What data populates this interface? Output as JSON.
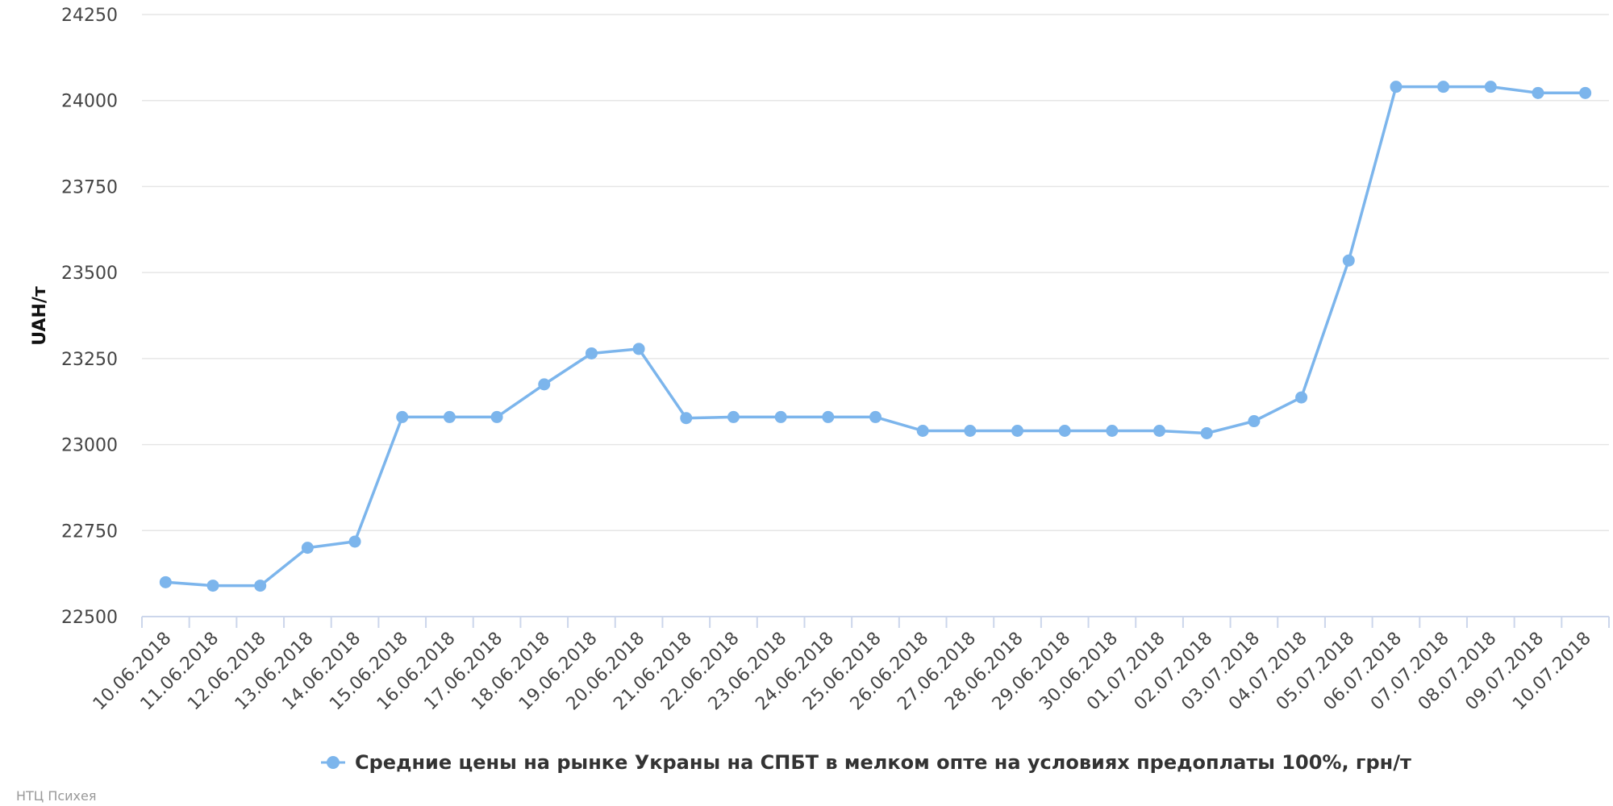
{
  "chart_data": {
    "type": "line",
    "ylabel": "UAH/т",
    "ylim": [
      22500,
      24250
    ],
    "yticks": [
      22500,
      22750,
      23000,
      23250,
      23500,
      23750,
      24000,
      24250
    ],
    "grid": true,
    "legend_position": "bottom-center",
    "x": [
      "10.06.2018",
      "11.06.2018",
      "12.06.2018",
      "13.06.2018",
      "14.06.2018",
      "15.06.2018",
      "16.06.2018",
      "17.06.2018",
      "18.06.2018",
      "19.06.2018",
      "20.06.2018",
      "21.06.2018",
      "22.06.2018",
      "23.06.2018",
      "24.06.2018",
      "25.06.2018",
      "26.06.2018",
      "27.06.2018",
      "28.06.2018",
      "29.06.2018",
      "30.06.2018",
      "01.07.2018",
      "02.07.2018",
      "03.07.2018",
      "04.07.2018",
      "05.07.2018",
      "06.07.2018",
      "07.07.2018",
      "08.07.2018",
      "09.07.2018",
      "10.07.2018"
    ],
    "series": [
      {
        "name": "Средние цены на рынке Украны на СПБТ в мелком опте на условиях предоплаты 100%, грн/т",
        "color": "#7cb5ec",
        "values": [
          22600,
          22590,
          22590,
          22700,
          22718,
          23080,
          23080,
          23080,
          23175,
          23265,
          23278,
          23077,
          23080,
          23080,
          23080,
          23080,
          23040,
          23040,
          23040,
          23040,
          23040,
          23040,
          23033,
          23068,
          23137,
          23535,
          24040,
          24040,
          24040,
          24022,
          24022
        ]
      }
    ]
  },
  "credit": "НТЦ Психея"
}
